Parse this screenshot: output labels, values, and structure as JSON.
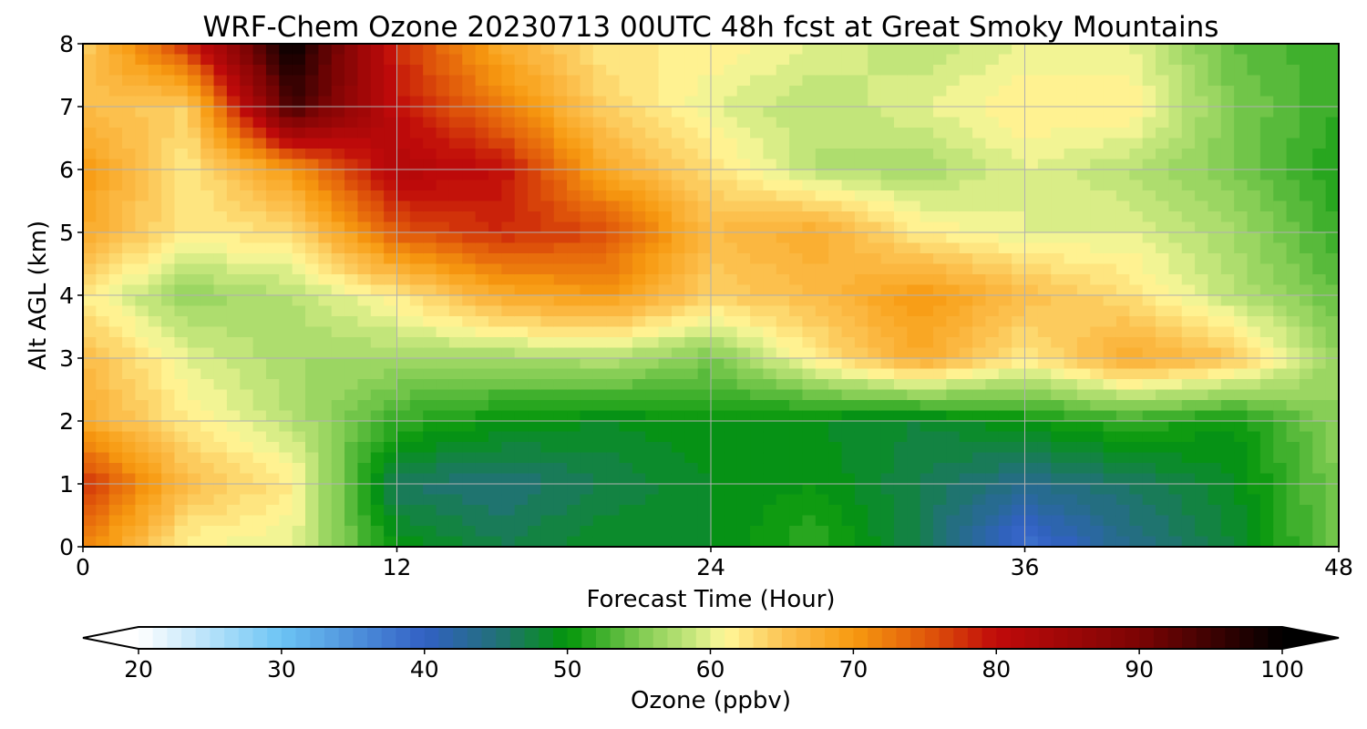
{
  "chart_data": {
    "type": "heatmap",
    "title": "WRF-Chem Ozone  20230713 00UTC 48h fcst at Great Smoky Mountains",
    "xlabel": "Forecast Time (Hour)",
    "ylabel": "Alt AGL (km)",
    "xlim": [
      0,
      48
    ],
    "ylim": [
      0,
      8
    ],
    "xticks": [
      0,
      12,
      24,
      36,
      48
    ],
    "yticks": [
      0,
      1,
      2,
      3,
      4,
      5,
      6,
      7,
      8
    ],
    "grid": true,
    "x": [
      0,
      4,
      8,
      12,
      16,
      20,
      24,
      28,
      32,
      36,
      40,
      44,
      48
    ],
    "y": [
      0,
      1,
      2,
      3,
      4,
      5,
      6,
      7,
      8
    ],
    "z": [
      [
        72,
        61,
        60,
        50,
        47,
        49,
        49,
        52,
        47,
        38,
        44,
        48,
        55
      ],
      [
        78,
        66,
        62,
        46,
        45,
        47,
        49,
        50,
        47,
        44,
        46,
        49,
        55
      ],
      [
        68,
        62,
        58,
        52,
        50,
        49,
        50,
        49,
        48,
        50,
        52,
        50,
        56
      ],
      [
        66,
        60,
        57,
        57,
        57,
        58,
        55,
        62,
        68,
        62,
        68,
        65,
        56
      ],
      [
        62,
        56,
        58,
        62,
        68,
        70,
        64,
        66,
        70,
        66,
        63,
        58,
        54
      ],
      [
        68,
        62,
        63,
        75,
        78,
        76,
        66,
        68,
        62,
        60,
        60,
        57,
        52
      ],
      [
        70,
        62,
        70,
        82,
        80,
        68,
        63,
        58,
        57,
        60,
        58,
        55,
        51
      ],
      [
        66,
        64,
        95,
        80,
        72,
        64,
        60,
        58,
        60,
        62,
        62,
        55,
        52
      ],
      [
        64,
        78,
        100,
        78,
        68,
        62,
        62,
        60,
        58,
        60,
        60,
        54,
        52
      ]
    ],
    "colorbar": {
      "label": "Ozone  (ppbv)",
      "min": 20,
      "max": 100,
      "ticks": [
        20,
        30,
        40,
        50,
        60,
        70,
        80,
        90,
        100
      ],
      "extend": "both",
      "color_stops": [
        {
          "v": 20,
          "c": "#ffffff"
        },
        {
          "v": 30,
          "c": "#6cc4f4"
        },
        {
          "v": 40,
          "c": "#3260c4"
        },
        {
          "v": 45,
          "c": "#22707a"
        },
        {
          "v": 50,
          "c": "#03960a"
        },
        {
          "v": 55,
          "c": "#7dca50"
        },
        {
          "v": 59,
          "c": "#cce980"
        },
        {
          "v": 61,
          "c": "#fff89a"
        },
        {
          "v": 65,
          "c": "#fcc454"
        },
        {
          "v": 70,
          "c": "#f79a10"
        },
        {
          "v": 75,
          "c": "#e15a0a"
        },
        {
          "v": 80,
          "c": "#c00a0a"
        },
        {
          "v": 90,
          "c": "#7c0404"
        },
        {
          "v": 100,
          "c": "#000000"
        }
      ]
    }
  }
}
